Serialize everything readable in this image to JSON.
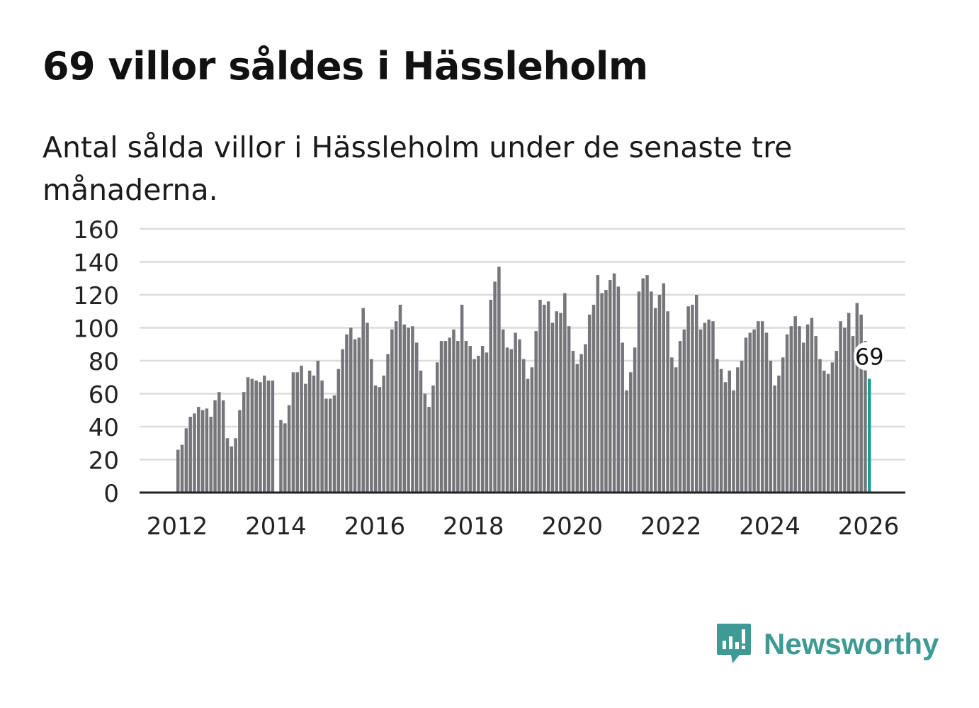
{
  "header": {
    "title": "69 villor såldes i Hässleholm",
    "subtitle": "Antal sålda villor i Hässleholm under de senaste tre månaderna."
  },
  "brand": {
    "name": "Newsworthy",
    "icon": "newsworthy-logo-icon",
    "color": "#3e9a94"
  },
  "colors": {
    "bar": "#76767a",
    "highlight": "#1f9a96",
    "grid": "#dcdcdc",
    "axis": "#222222"
  },
  "chart_data": {
    "type": "bar",
    "xlim": [
      "2011-01",
      "2026-12"
    ],
    "ylim": [
      0,
      160
    ],
    "yticks": [
      0,
      20,
      40,
      60,
      80,
      100,
      120,
      140,
      160
    ],
    "xticks": [
      "2012",
      "2014",
      "2016",
      "2018",
      "2020",
      "2022",
      "2024",
      "2026"
    ],
    "grid": true,
    "annotation": {
      "label": "69",
      "month": "2026-01",
      "value": 69
    },
    "start_month": "2012-01",
    "values": [
      26,
      29,
      39,
      46,
      48,
      52,
      50,
      51,
      46,
      56,
      61,
      56,
      33,
      28,
      33,
      50,
      61,
      70,
      69,
      68,
      67,
      71,
      68,
      68,
      null,
      44,
      42,
      53,
      73,
      73,
      77,
      66,
      74,
      71,
      80,
      68,
      57,
      57,
      59,
      75,
      87,
      96,
      100,
      93,
      94,
      112,
      103,
      81,
      65,
      64,
      71,
      84,
      99,
      104,
      114,
      102,
      100,
      101,
      91,
      74,
      60,
      52,
      65,
      79,
      92,
      92,
      94,
      99,
      92,
      114,
      92,
      89,
      81,
      83,
      89,
      85,
      117,
      128,
      137,
      99,
      88,
      87,
      97,
      93,
      81,
      69,
      76,
      98,
      117,
      114,
      116,
      103,
      110,
      109,
      121,
      101,
      86,
      78,
      84,
      90,
      108,
      114,
      132,
      121,
      123,
      129,
      133,
      125,
      91,
      62,
      73,
      88,
      122,
      130,
      132,
      122,
      112,
      120,
      127,
      110,
      82,
      76,
      92,
      99,
      113,
      114,
      120,
      99,
      103,
      105,
      104,
      81,
      75,
      67,
      74,
      62,
      76,
      80,
      94,
      97,
      99,
      104,
      104,
      97,
      80,
      65,
      71,
      82,
      96,
      101,
      107,
      101,
      91,
      102,
      106,
      95,
      81,
      74,
      72,
      79,
      86,
      104,
      100,
      109,
      95,
      115,
      108,
      92,
      69
    ]
  }
}
